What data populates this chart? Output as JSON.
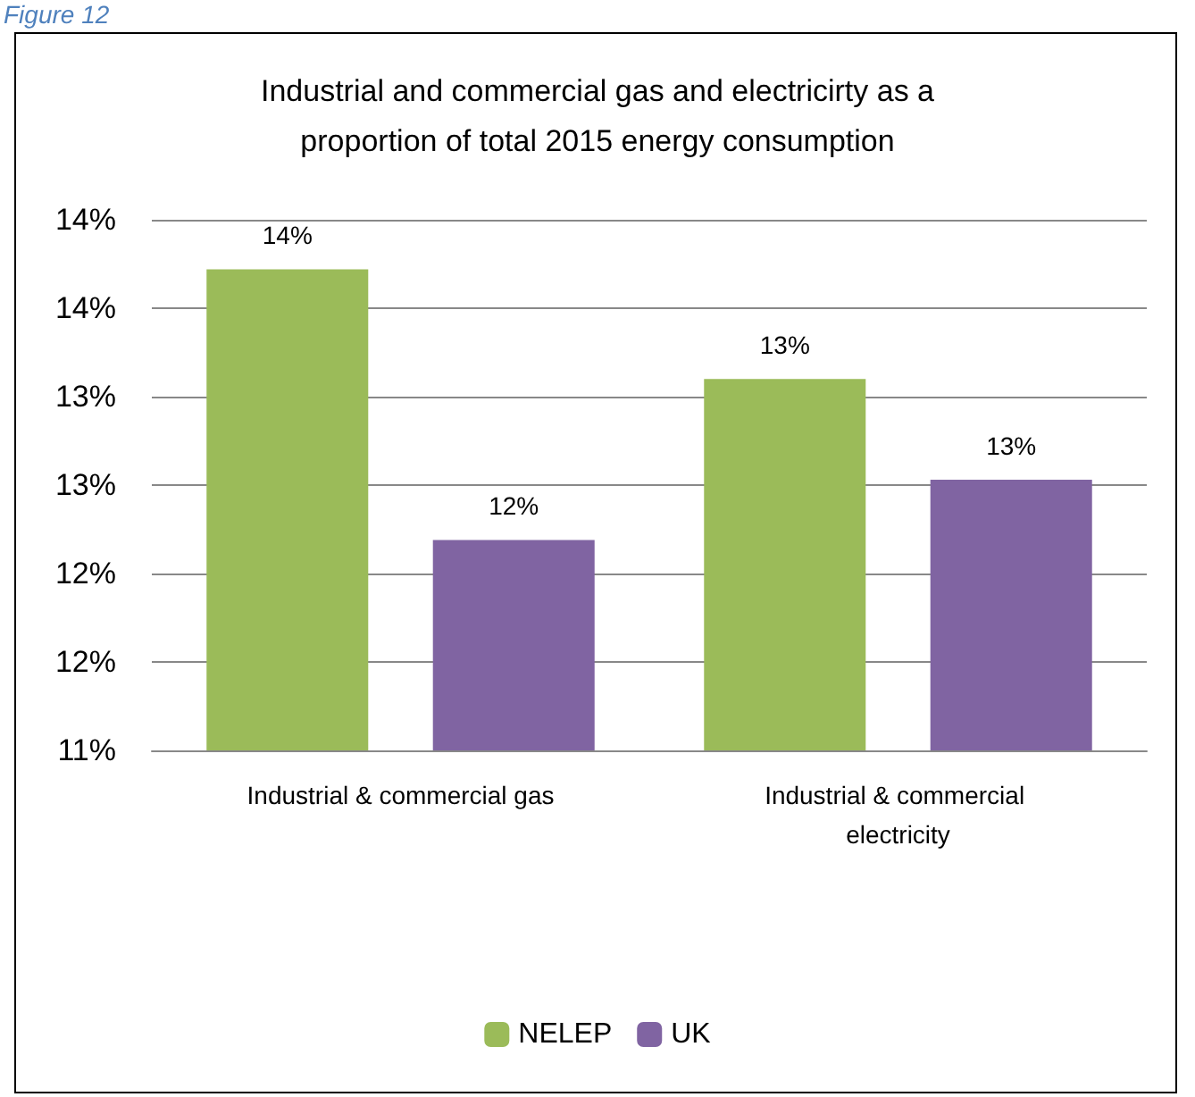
{
  "chart_data": {
    "type": "bar",
    "title": "Industrial and commercial gas and electricirty as a\nproportion of total 2015 energy consumption",
    "annotations": [
      "Figure 12"
    ],
    "categories": [
      "Industrial & commercial gas",
      "Industrial & commercial electricity"
    ],
    "series": [
      {
        "name": "NELEP",
        "color": "#9bbb59",
        "values": [
          13.72,
          13.1
        ],
        "value_labels": [
          "14%",
          "13%"
        ]
      },
      {
        "name": "UK",
        "color": "#8064a2",
        "values": [
          12.19,
          12.53
        ],
        "value_labels": [
          "12%",
          "13%"
        ]
      }
    ],
    "ylim": [
      11,
      14
    ],
    "yticks": [
      {
        "value": 11,
        "label": "11%"
      },
      {
        "value": 11.5,
        "label": "12%"
      },
      {
        "value": 12,
        "label": "12%"
      },
      {
        "value": 12.5,
        "label": "13%"
      },
      {
        "value": 13,
        "label": "13%"
      },
      {
        "value": 13.5,
        "label": "14%"
      },
      {
        "value": 14,
        "label": "14%"
      }
    ],
    "grid": "y",
    "legend": "bottom"
  }
}
